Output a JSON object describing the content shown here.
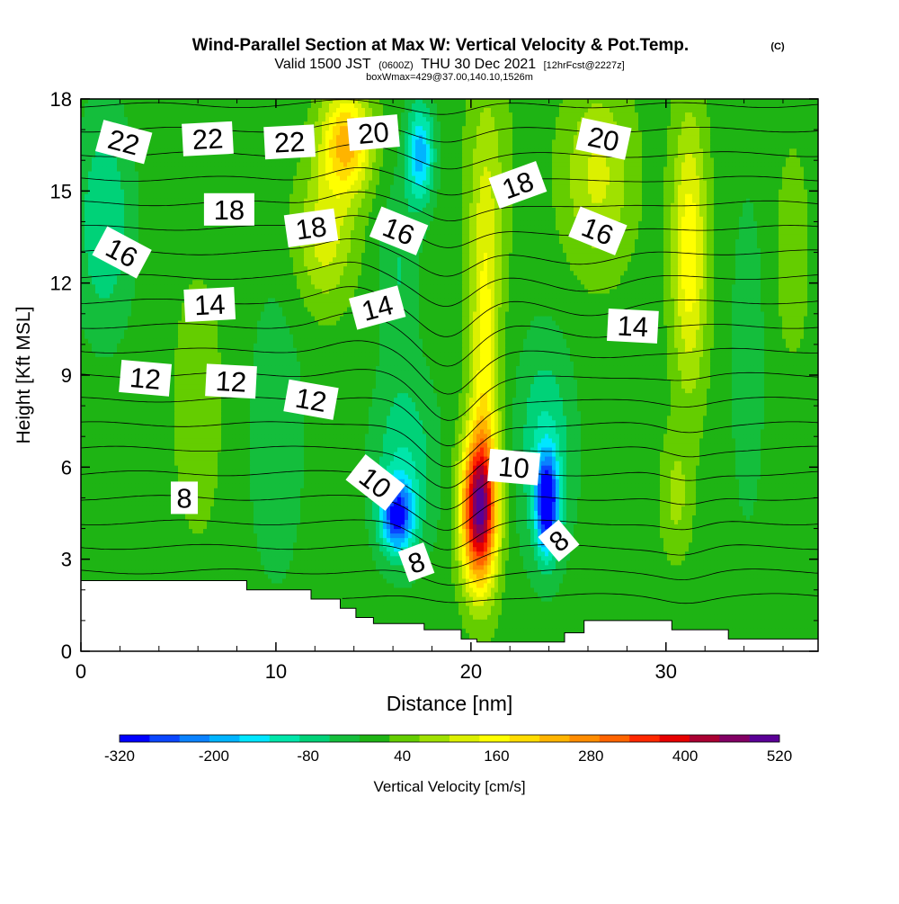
{
  "title": {
    "main": "Wind-Parallel Section at Max W: Vertical Velocity & Pot.Temp.",
    "copyright": "(C)",
    "valid_pre": "Valid 1500 JST",
    "valid_z": "(0600Z)",
    "valid_post": "THU 30 Dec 2021",
    "forecast": "[12hrFcst@2227z]",
    "box": "boxWmax=429@37.00,140.10,1526m"
  },
  "chart_data": {
    "type": "heatmap",
    "xlabel": "Distance [nm]",
    "ylabel": "Height [Kft MSL]",
    "xlim": [
      0,
      37.8
    ],
    "ylim": [
      0,
      18
    ],
    "x_ticks": [
      "0",
      "10",
      "20",
      "30"
    ],
    "y_ticks": [
      "0",
      "3",
      "6",
      "9",
      "12",
      "15",
      "18"
    ],
    "colorbar": {
      "label": "Vertical Velocity [cm/s]",
      "tick_labels": [
        "-320",
        "-200",
        "-80",
        "40",
        "160",
        "280",
        "400",
        "520"
      ],
      "levels": [
        -320,
        -280,
        -240,
        -200,
        -160,
        -120,
        -80,
        -40,
        0,
        40,
        80,
        120,
        160,
        200,
        240,
        280,
        320,
        360,
        400,
        440,
        480,
        520
      ],
      "colors": [
        "#0000ff",
        "#0a46ff",
        "#0a82ff",
        "#00b4ff",
        "#00e6ff",
        "#00e6aa",
        "#00d278",
        "#14be3c",
        "#1eb414",
        "#64cd00",
        "#a0e100",
        "#dcf000",
        "#ffff00",
        "#ffdc00",
        "#ffb400",
        "#ff8c00",
        "#ff6400",
        "#ff2800",
        "#e60000",
        "#aa0032",
        "#820064",
        "#5a0096"
      ]
    },
    "vertical_velocity_features_cm_s": [
      {
        "x": 20.4,
        "y": 4.8,
        "w": 480
      },
      {
        "x": 20.6,
        "y": 9.0,
        "w": 170
      },
      {
        "x": 16.2,
        "y": 4.4,
        "w": -260
      },
      {
        "x": 23.9,
        "y": 4.7,
        "w": -310
      },
      {
        "x": 17.5,
        "y": 15.8,
        "w": -180
      },
      {
        "x": 13.5,
        "y": 16.5,
        "w": 230
      },
      {
        "x": 31.0,
        "y": 13.0,
        "w": 160
      },
      {
        "x": 1.0,
        "y": 14.0,
        "w": -100
      }
    ],
    "terrain_kft": {
      "x": [
        0,
        8.5,
        8.5,
        11.8,
        11.8,
        13.3,
        13.3,
        14.1,
        14.1,
        15.0,
        15.0,
        17.6,
        17.6,
        19.5,
        19.5,
        20.3,
        20.3,
        24.8,
        24.8,
        25.8,
        25.8,
        30.3,
        30.3,
        33.2,
        33.2,
        37.8
      ],
      "h": [
        2.3,
        2.3,
        2.0,
        2.0,
        1.7,
        1.7,
        1.4,
        1.4,
        1.1,
        1.1,
        0.9,
        0.9,
        0.7,
        0.7,
        0.4,
        0.4,
        0.3,
        0.3,
        0.6,
        0.6,
        1.0,
        1.0,
        0.7,
        0.7,
        0.4,
        0.4
      ]
    },
    "potential_temperature_labels": [
      {
        "text": "22",
        "x": 2.2,
        "y": 16.6,
        "angle": 15
      },
      {
        "text": "22",
        "x": 6.5,
        "y": 16.7,
        "angle": -3
      },
      {
        "text": "22",
        "x": 10.7,
        "y": 16.6,
        "angle": -3
      },
      {
        "text": "20",
        "x": 15.0,
        "y": 16.9,
        "angle": -5
      },
      {
        "text": "20",
        "x": 26.8,
        "y": 16.7,
        "angle": 12
      },
      {
        "text": "18",
        "x": 7.6,
        "y": 14.4,
        "angle": 0
      },
      {
        "text": "18",
        "x": 11.8,
        "y": 13.8,
        "angle": -8
      },
      {
        "text": "18",
        "x": 22.4,
        "y": 15.2,
        "angle": -20
      },
      {
        "text": "16",
        "x": 2.1,
        "y": 13.0,
        "angle": 28
      },
      {
        "text": "16",
        "x": 16.3,
        "y": 13.7,
        "angle": 22
      },
      {
        "text": "16",
        "x": 26.5,
        "y": 13.7,
        "angle": 22
      },
      {
        "text": "14",
        "x": 6.6,
        "y": 11.3,
        "angle": -3
      },
      {
        "text": "14",
        "x": 15.2,
        "y": 11.2,
        "angle": -15
      },
      {
        "text": "14",
        "x": 28.3,
        "y": 10.6,
        "angle": 3
      },
      {
        "text": "12",
        "x": 3.3,
        "y": 8.9,
        "angle": 5
      },
      {
        "text": "12",
        "x": 7.7,
        "y": 8.8,
        "angle": 3
      },
      {
        "text": "12",
        "x": 11.8,
        "y": 8.2,
        "angle": 10
      },
      {
        "text": "10",
        "x": 15.1,
        "y": 5.5,
        "angle": 38
      },
      {
        "text": "10",
        "x": 22.2,
        "y": 6.0,
        "angle": 5
      },
      {
        "text": "8",
        "x": 5.3,
        "y": 5.0,
        "angle": 0
      },
      {
        "text": "8",
        "x": 17.2,
        "y": 2.9,
        "angle": -20
      },
      {
        "text": "8",
        "x": 24.5,
        "y": 3.6,
        "angle": -40
      }
    ]
  }
}
